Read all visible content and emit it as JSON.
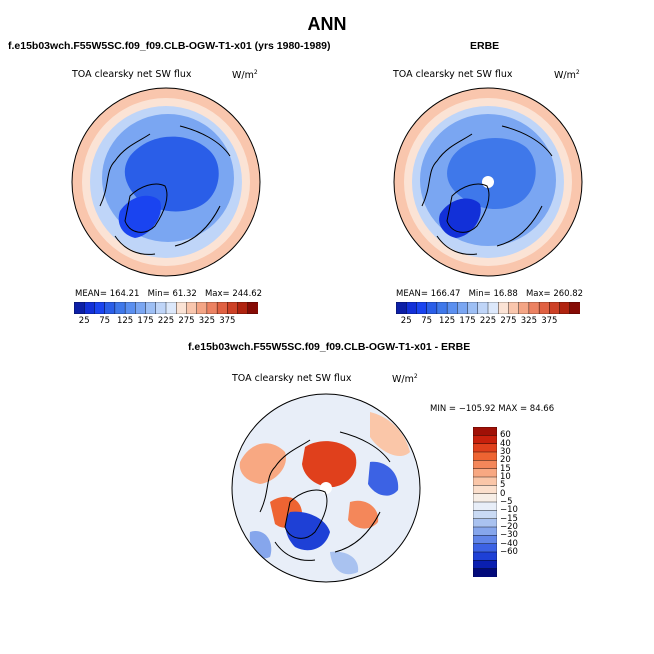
{
  "title": "ANN",
  "panels": [
    {
      "case_label": "f.e15b03wch.F55W5SC.f09_f09.CLB-OGW-T1-x01 (yrs 1980-1989)",
      "field": "TOA clearsky net SW flux",
      "units": "W/m",
      "units_exp": "2",
      "stats": {
        "mean_label": "MEAN=",
        "mean": "164.21",
        "min_label": "Min=",
        "min": "61.32",
        "max_label": "Max=",
        "max": "244.62"
      },
      "colorbar": {
        "colors": [
          "#0c1fa6",
          "#1230d8",
          "#1a44f0",
          "#2a5ee8",
          "#3f78ea",
          "#5a8ff0",
          "#7aa6f2",
          "#9dbff5",
          "#bfd5f8",
          "#dce8fb",
          "#fbe3d5",
          "#f9c6ad",
          "#f4a585",
          "#ec8262",
          "#e06142",
          "#cd4126",
          "#b0230f",
          "#860b05"
        ],
        "tick_labels": [
          "25",
          "75",
          "125",
          "175",
          "225",
          "275",
          "325",
          "375"
        ]
      }
    },
    {
      "case_label": "ERBE",
      "field": "TOA clearsky net SW flux",
      "units": "W/m",
      "units_exp": "2",
      "stats": {
        "mean_label": "MEAN=",
        "mean": "166.47",
        "min_label": "Min=",
        "min": "16.88",
        "max_label": "Max=",
        "max": "260.82"
      },
      "colorbar": {
        "colors": [
          "#0c1fa6",
          "#1230d8",
          "#1a44f0",
          "#2a5ee8",
          "#3f78ea",
          "#5a8ff0",
          "#7aa6f2",
          "#9dbff5",
          "#bfd5f8",
          "#dce8fb",
          "#fbe3d5",
          "#f9c6ad",
          "#f4a585",
          "#ec8262",
          "#e06142",
          "#cd4126",
          "#b0230f",
          "#860b05"
        ],
        "tick_labels": [
          "25",
          "75",
          "125",
          "175",
          "225",
          "275",
          "325",
          "375"
        ]
      }
    }
  ],
  "diff_panel": {
    "case_label": "f.e15b03wch.F55W5SC.f09_f09.CLB-OGW-T1-x01 - ERBE",
    "field": "TOA clearsky net SW flux",
    "units": "W/m",
    "units_exp": "2",
    "minmax": "MIN = −105.92  MAX =  84.66",
    "colorbar": {
      "colors": [
        "#a01006",
        "#c8200c",
        "#e0401c",
        "#ee6432",
        "#f4875a",
        "#f8a882",
        "#fac6a8",
        "#fbdfcc",
        "#f7eee6",
        "#e8eef8",
        "#c9daf4",
        "#a9c2f0",
        "#86a6ec",
        "#6185e8",
        "#3c62e4",
        "#1e40d6",
        "#0a1fb0",
        "#020a7a"
      ],
      "tick_labels": [
        "60",
        "40",
        "30",
        "20",
        "15",
        "10",
        "5",
        "0",
        "−5",
        "−10",
        "−15",
        "−20",
        "−30",
        "−40",
        "−60"
      ]
    }
  },
  "chart_data": [
    {
      "type": "heatmap",
      "projection": "north polar stereographic",
      "title": "ANN",
      "subtitle": "f.e15b03wch.F55W5SC.f09_f09.CLB-OGW-T1-x01 (yrs 1980-1989)",
      "field": "TOA clearsky net SW flux",
      "units": "W/m2",
      "mean": 164.21,
      "min": 61.32,
      "max": 244.62,
      "contour_levels": [
        25,
        50,
        75,
        100,
        125,
        150,
        175,
        200,
        225,
        250,
        275,
        300,
        325,
        350,
        375
      ],
      "legend": "bottom"
    },
    {
      "type": "heatmap",
      "projection": "north polar stereographic",
      "subtitle": "ERBE",
      "field": "TOA clearsky net SW flux",
      "units": "W/m2",
      "mean": 166.47,
      "min": 16.88,
      "max": 260.82,
      "contour_levels": [
        25,
        50,
        75,
        100,
        125,
        150,
        175,
        200,
        225,
        250,
        275,
        300,
        325,
        350,
        375
      ],
      "legend": "bottom"
    },
    {
      "type": "heatmap",
      "projection": "north polar stereographic",
      "subtitle": "f.e15b03wch.F55W5SC.f09_f09.CLB-OGW-T1-x01 - ERBE",
      "field": "TOA clearsky net SW flux",
      "units": "W/m2",
      "min": -105.92,
      "max": 84.66,
      "contour_levels": [
        -60,
        -40,
        -30,
        -20,
        -15,
        -10,
        -5,
        0,
        5,
        10,
        15,
        20,
        30,
        40,
        60
      ],
      "legend": "right"
    }
  ]
}
